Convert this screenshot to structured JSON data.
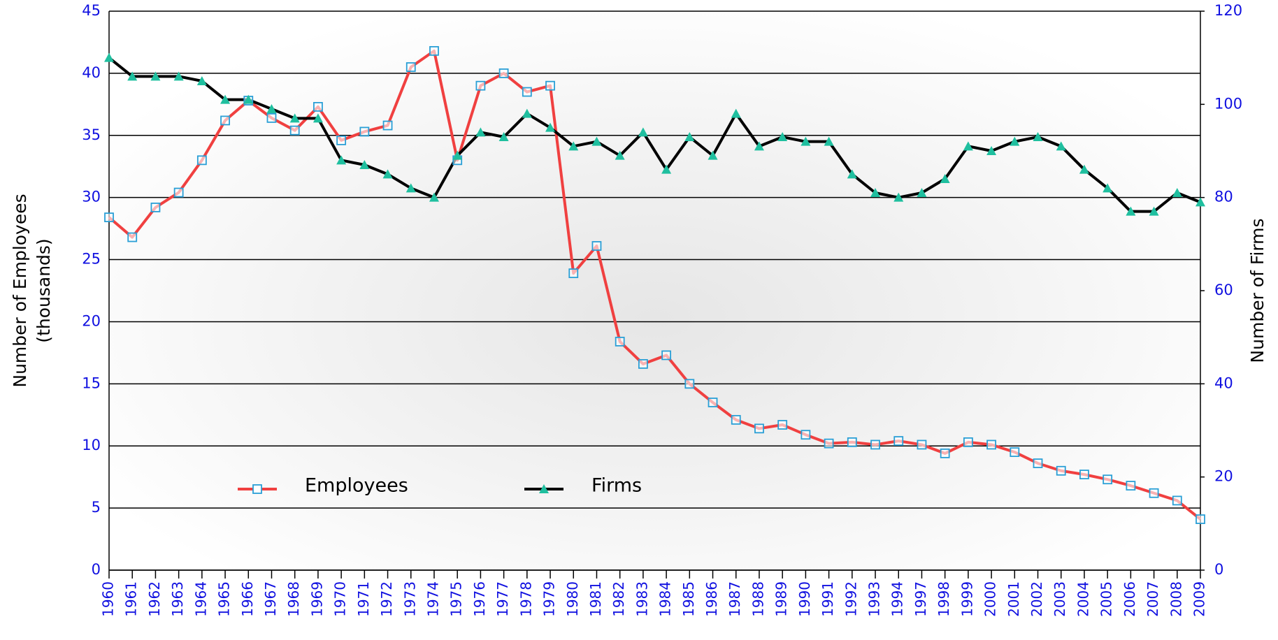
{
  "chart_data": {
    "type": "line",
    "ylabel": [
      "Number of Employees",
      "(thousands)"
    ],
    "y2label": "Number of Firms",
    "categories": [
      "1960",
      "1961",
      "1962",
      "1963",
      "1964",
      "1965",
      "1966",
      "1967",
      "1968",
      "1969",
      "1970",
      "1971",
      "1972",
      "1973",
      "1974",
      "1975",
      "1976",
      "1977",
      "1978",
      "1979",
      "1980",
      "1981",
      "1982",
      "1983",
      "1984",
      "1985",
      "1986",
      "1987",
      "1988",
      "1989",
      "1990",
      "1991",
      "1992",
      "1993",
      "1994",
      "1997",
      "1998",
      "1999",
      "2000",
      "2001",
      "2002",
      "2003",
      "2004",
      "2005",
      "2006",
      "2007",
      "2008",
      "2009"
    ],
    "series": [
      {
        "name": "Employees",
        "color": "#f04040",
        "marker_color": "#2a9fd6",
        "marker": "square",
        "values": [
          28.4,
          26.8,
          29.2,
          30.4,
          33.0,
          36.2,
          37.8,
          36.4,
          35.4,
          37.3,
          34.6,
          35.3,
          35.8,
          40.5,
          41.8,
          33.0,
          39.0,
          40.0,
          38.5,
          39.0,
          23.9,
          26.1,
          18.4,
          16.6,
          17.3,
          15.0,
          13.5,
          12.1,
          11.4,
          11.7,
          10.9,
          10.2,
          10.3,
          10.1,
          10.4,
          10.1,
          9.4,
          10.3,
          10.1,
          9.5,
          8.6,
          8.0,
          7.7,
          7.3,
          6.8,
          6.2,
          5.6,
          4.1
        ]
      },
      {
        "name": "Firms",
        "color": "#000000",
        "marker_color": "#1fbf9f",
        "marker": "triangle",
        "axis": "y2",
        "values": [
          110,
          106,
          106,
          106,
          105,
          101,
          101,
          99,
          97,
          97,
          88,
          87,
          85,
          82,
          80,
          89,
          94,
          93,
          98,
          95,
          91,
          92,
          89,
          94,
          86,
          93,
          89,
          98,
          91,
          93,
          92,
          92,
          85,
          81,
          80,
          81,
          84,
          91,
          90,
          92,
          93,
          91,
          86,
          82,
          77,
          77,
          81,
          79
        ]
      }
    ],
    "ylim": [
      0,
      45
    ],
    "yticks": [
      0,
      5,
      10,
      15,
      20,
      25,
      30,
      35,
      40,
      45
    ],
    "y2lim": [
      0,
      120
    ],
    "y2ticks": [
      0,
      20,
      40,
      60,
      80,
      100,
      120
    ],
    "grid": true,
    "legend": "lower left"
  }
}
